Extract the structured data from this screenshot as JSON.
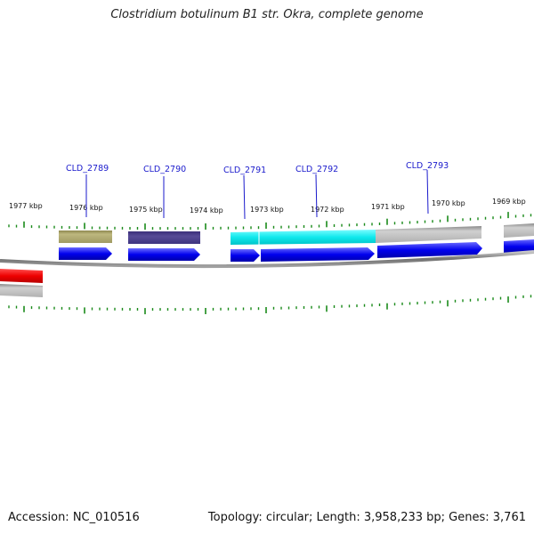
{
  "title": "Clostridium botulinum B1 str. Okra, complete genome",
  "footer": {
    "accession": "Accession: NC_010516",
    "stats": "Topology: circular; Length: 3,958,233 bp; Genes: 3,761"
  },
  "scale_labels": [
    "1977 kbp",
    "1976 kbp",
    "1975 kbp",
    "1974 kbp",
    "1973 kbp",
    "1972 kbp",
    "1971 kbp",
    "1970 kbp",
    "1969 kbp"
  ],
  "gene_labels": [
    "CLD_2789",
    "CLD_2790",
    "CLD_2791",
    "CLD_2792",
    "CLD_2793"
  ],
  "colors": {
    "cds": "#0000ee",
    "olive": "#aaa46a",
    "purple": "#4a3f8a",
    "cyan": "#10e8ec",
    "grey": "#b8b8b8",
    "red": "#ee0000",
    "tick": "#1a8a1a",
    "backbone": "#8a8a8a",
    "label": "#1a1acc"
  }
}
